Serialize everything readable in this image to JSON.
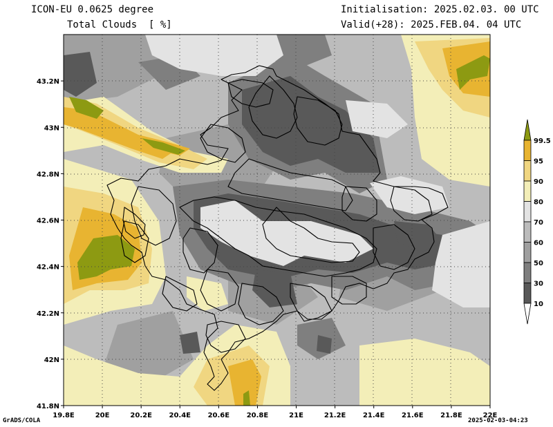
{
  "header": {
    "model_line": "ICON-EU 0.0625 degree",
    "field_line": "Total Clouds  [ %]",
    "init_line": "Initialisation: 2025.02.03. 00 UTC",
    "valid_line": "Valid(+28): 2025.FEB.04. 04 UTC"
  },
  "footer": {
    "credit": "GrADS/COLA",
    "timestamp": "2025-02-03-04:23"
  },
  "map": {
    "lon_labels": [
      "19.8E",
      "20E",
      "20.2E",
      "20.4E",
      "20.6E",
      "20.8E",
      "21E",
      "21.2E",
      "21.4E",
      "21.6E",
      "21.8E",
      "22E"
    ],
    "lat_labels": [
      "43.2N",
      "43N",
      "42.8N",
      "42.6N",
      "42.4N",
      "42.2N",
      "42N",
      "41.8N"
    ],
    "lon_range": [
      19.8,
      22.0
    ],
    "lat_range": [
      41.8,
      43.4
    ]
  },
  "colorbar": {
    "labels": [
      "99.5",
      "95",
      "90",
      "80",
      "70",
      "60",
      "50",
      "30",
      "10"
    ],
    "classes": [
      {
        "from": 0,
        "to": 10,
        "color": "#ffffff"
      },
      {
        "from": 10,
        "to": 30,
        "color": "#595959"
      },
      {
        "from": 30,
        "to": 50,
        "color": "#7f7f7f"
      },
      {
        "from": 50,
        "to": 60,
        "color": "#a0a0a0"
      },
      {
        "from": 60,
        "to": 70,
        "color": "#bcbcbc"
      },
      {
        "from": 70,
        "to": 80,
        "color": "#e3e3e3"
      },
      {
        "from": 80,
        "to": 90,
        "color": "#f3eeb8"
      },
      {
        "from": 90,
        "to": 95,
        "color": "#f0d681"
      },
      {
        "from": 95,
        "to": 99.5,
        "color": "#e8b431"
      },
      {
        "from": 99.5,
        "to": 100,
        "color": "#8d9a12"
      }
    ]
  }
}
